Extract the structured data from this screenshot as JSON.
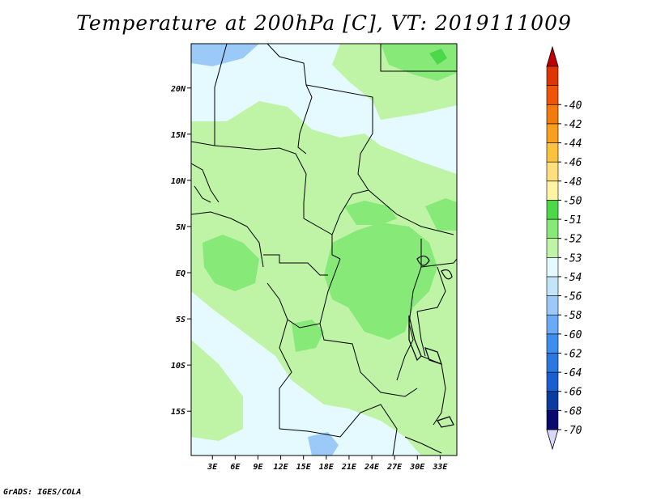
{
  "title": "Temperature at 200hPa [C], VT: 2019111009",
  "credit": "GrADS: IGES/COLA",
  "map": {
    "lat_labels": [
      {
        "lat": 20,
        "label": "20N"
      },
      {
        "lat": 15,
        "label": "15N"
      },
      {
        "lat": 10,
        "label": "10N"
      },
      {
        "lat": 5,
        "label": "5N"
      },
      {
        "lat": 0,
        "label": "EQ"
      },
      {
        "lat": -5,
        "label": "5S"
      },
      {
        "lat": -10,
        "label": "10S"
      },
      {
        "lat": -15,
        "label": "15S"
      }
    ],
    "lon_labels": [
      {
        "lon": 3,
        "label": "3E"
      },
      {
        "lon": 6,
        "label": "6E"
      },
      {
        "lon": 9,
        "label": "9E"
      },
      {
        "lon": 12,
        "label": "12E"
      },
      {
        "lon": 15,
        "label": "15E"
      },
      {
        "lon": 18,
        "label": "18E"
      },
      {
        "lon": 21,
        "label": "21E"
      },
      {
        "lon": 24,
        "label": "24E"
      },
      {
        "lon": 27,
        "label": "27E"
      },
      {
        "lon": 30,
        "label": "30E"
      },
      {
        "lon": 33,
        "label": "33E"
      }
    ],
    "lon_range": [
      0.2,
      35.2
    ],
    "lat_range": [
      -19.8,
      24.8
    ]
  },
  "legend": {
    "colors": [
      "#d8d8f8",
      "#0a0a6e",
      "#0a3ca0",
      "#1a5fd2",
      "#2a78e0",
      "#3e8ef0",
      "#6aaaf6",
      "#9ccaf8",
      "#c4e4fa",
      "#e4fafe",
      "#bff3a6",
      "#86e978",
      "#4dd84a",
      "#fdf5a4",
      "#fde07c",
      "#fbc23e",
      "#f8a01e",
      "#f37a0e",
      "#ef5408",
      "#e13404",
      "#c00000"
    ],
    "labels": [
      "-70",
      "-68",
      "-66",
      "-64",
      "-62",
      "-60",
      "-58",
      "-56",
      "-54",
      "-53",
      "-52",
      "-51",
      "-50",
      "-48",
      "-46",
      "-44",
      "-42",
      "-40"
    ]
  }
}
